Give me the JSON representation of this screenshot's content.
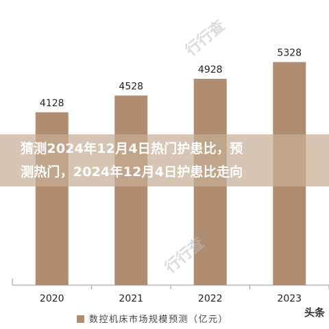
{
  "overlay": {
    "title_line1": "猜测2024年12月4日热门护患比，预",
    "title_line2": "测热门，2024年12月4日护患比走向"
  },
  "watermark": "行行查",
  "corner_logo": "头条",
  "colors": {
    "bar": "#b08d71",
    "axis": "#888888",
    "overlay": "#c8af96"
  },
  "chart_data": {
    "type": "bar",
    "categories": [
      "2020",
      "2021",
      "2022",
      "2023"
    ],
    "values": [
      4128,
      4528,
      4928,
      5328
    ],
    "legend": "数控机床市场规模预测（亿元）",
    "ylim": [
      0,
      5500
    ]
  }
}
